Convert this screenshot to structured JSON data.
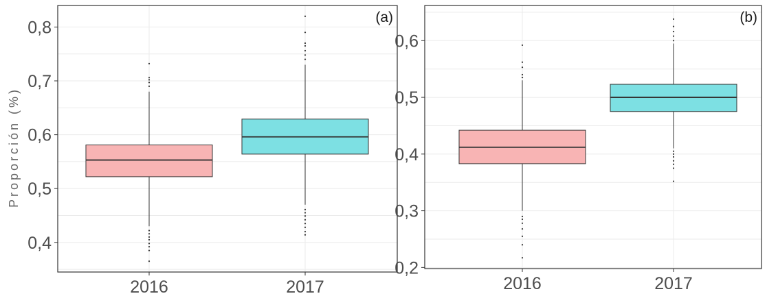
{
  "chart_data": [
    {
      "type": "boxplot",
      "panel_label": "(a)",
      "ylabel": "Proporción (%)",
      "xlabel": "",
      "categories": [
        "2016",
        "2017"
      ],
      "ylim": [
        0.345,
        0.84
      ],
      "yticks": [
        0.4,
        0.5,
        0.6,
        0.7,
        0.8
      ],
      "ytick_labels": [
        "0,4",
        "0,5",
        "0,6",
        "0,7",
        "0,8"
      ],
      "grid": true,
      "boxes": [
        {
          "category": "2016",
          "q1": 0.522,
          "median": 0.553,
          "q3": 0.581,
          "whisker_low": 0.43,
          "whisker_high": 0.68,
          "outliers": [
            0.365,
            0.385,
            0.392,
            0.398,
            0.405,
            0.41,
            0.416,
            0.422,
            0.69,
            0.697,
            0.702,
            0.706,
            0.732
          ]
        },
        {
          "category": "2017",
          "q1": 0.564,
          "median": 0.596,
          "q3": 0.629,
          "whisker_low": 0.47,
          "whisker_high": 0.73,
          "outliers": [
            0.414,
            0.42,
            0.428,
            0.435,
            0.442,
            0.449,
            0.455,
            0.461,
            0.74,
            0.748,
            0.756,
            0.765,
            0.77,
            0.79,
            0.82
          ]
        }
      ]
    },
    {
      "type": "boxplot",
      "panel_label": "(b)",
      "ylabel": "",
      "xlabel": "",
      "categories": [
        "2016",
        "2017"
      ],
      "ylim": [
        0.198,
        0.662
      ],
      "yticks": [
        0.2,
        0.3,
        0.4,
        0.5,
        0.6
      ],
      "ytick_labels": [
        "0,2",
        "0,3",
        "0,4",
        "0,5",
        "0,6"
      ],
      "grid": true,
      "boxes": [
        {
          "category": "2016",
          "q1": 0.383,
          "median": 0.412,
          "q3": 0.442,
          "whisker_low": 0.3,
          "whisker_high": 0.53,
          "outliers": [
            0.217,
            0.24,
            0.255,
            0.268,
            0.278,
            0.285,
            0.29,
            0.535,
            0.54,
            0.553,
            0.562,
            0.592
          ]
        },
        {
          "category": "2017",
          "q1": 0.475,
          "median": 0.5,
          "q3": 0.523,
          "whisker_low": 0.41,
          "whisker_high": 0.595,
          "outliers": [
            0.352,
            0.375,
            0.382,
            0.388,
            0.395,
            0.4,
            0.405,
            0.6,
            0.608,
            0.616,
            0.625,
            0.638
          ]
        }
      ]
    }
  ],
  "colors": {
    "fill_2016": "#f8b4b4",
    "fill_2017": "#7de0e3",
    "box_stroke": "#333333",
    "grid": "#ebebeb",
    "frame": "#333333"
  }
}
